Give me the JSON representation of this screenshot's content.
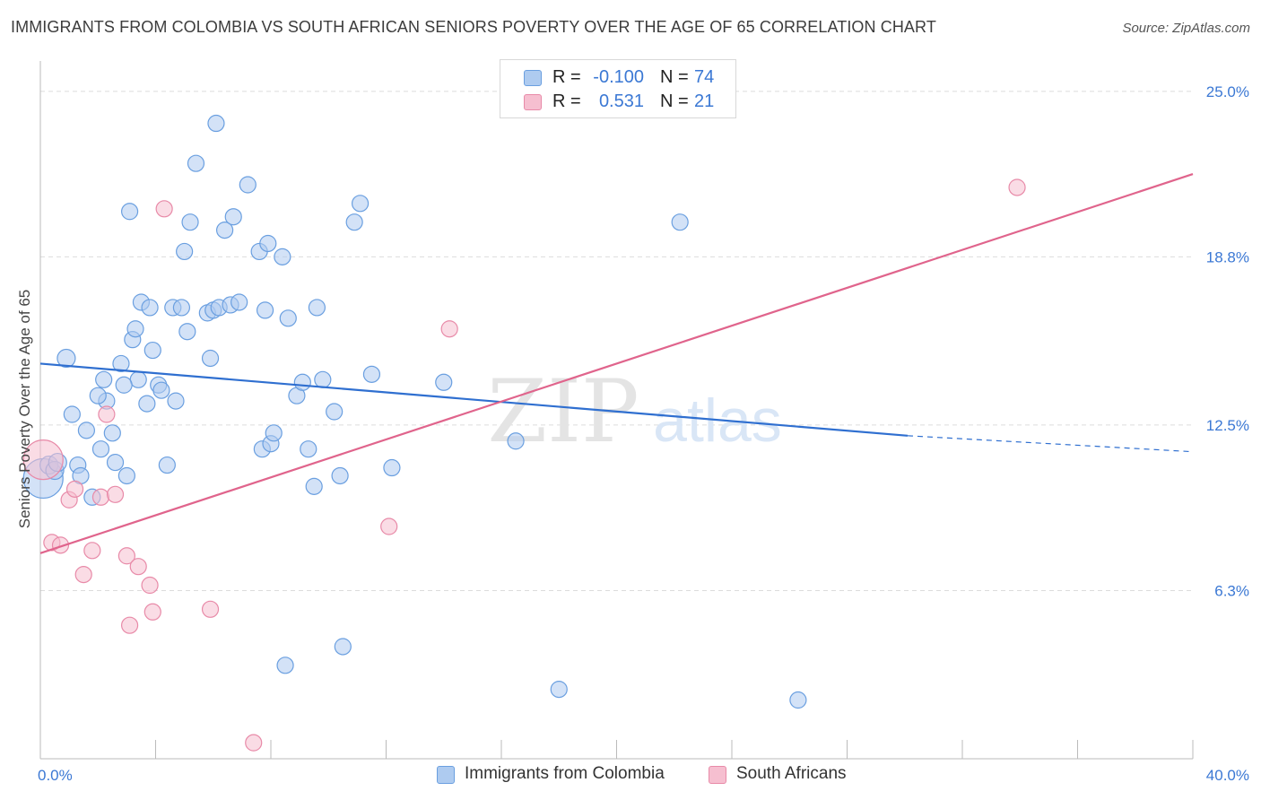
{
  "header": {
    "title": "IMMIGRANTS FROM COLOMBIA VS SOUTH AFRICAN SENIORS POVERTY OVER THE AGE OF 65 CORRELATION CHART",
    "source": "Source: ZipAtlas.com"
  },
  "legend": {
    "rows": [
      {
        "r_label": "R =",
        "r_value": "-0.100",
        "n_label": "N =",
        "n_value": "74"
      },
      {
        "r_label": "R =",
        "r_value": "0.531",
        "n_label": "N =",
        "n_value": "21"
      }
    ]
  },
  "watermark": {
    "zip": "ZIP",
    "atlas": "atlas"
  },
  "colors": {
    "blue_fill": "#aecbf0",
    "blue_stroke": "#6a9fe0",
    "blue_line": "#2f6fd0",
    "pink_fill": "#f6bfd0",
    "pink_stroke": "#e88aa8",
    "pink_line": "#e0648c",
    "tick_text": "#3b78d4"
  },
  "chart_data": {
    "type": "scatter",
    "title": "IMMIGRANTS FROM COLOMBIA VS SOUTH AFRICAN SENIORS POVERTY OVER THE AGE OF 65 CORRELATION CHART",
    "xlabel": "",
    "ylabel": "Seniors Poverty Over the Age of 65",
    "xlim": [
      0,
      40
    ],
    "ylim": [
      0,
      25.8
    ],
    "x_tick_labels": [
      "0.0%",
      "40.0%"
    ],
    "y_ticks": [
      6.3,
      12.5,
      18.8,
      25.0
    ],
    "y_tick_labels": [
      "6.3%",
      "12.5%",
      "18.8%",
      "25.0%"
    ],
    "grid": "horizontal dashed",
    "legend_position": "top-center",
    "series": [
      {
        "name": "Immigrants from Colombia",
        "color": "#6a9fe0",
        "trend": {
          "x": [
            0,
            30.1
          ],
          "y": [
            14.8,
            12.1
          ],
          "extended_to": [
            40,
            11.5
          ]
        },
        "points": [
          [
            0.1,
            10.5,
            22
          ],
          [
            0.3,
            11.0,
            10
          ],
          [
            0.5,
            10.8,
            10
          ],
          [
            0.6,
            11.1,
            10
          ],
          [
            0.9,
            15.0,
            10
          ],
          [
            1.1,
            12.9,
            9
          ],
          [
            1.3,
            11.0,
            9
          ],
          [
            1.4,
            10.6,
            9
          ],
          [
            1.6,
            12.3,
            9
          ],
          [
            1.8,
            9.8,
            9
          ],
          [
            2.1,
            11.6,
            9
          ],
          [
            2.2,
            14.2,
            9
          ],
          [
            2.3,
            13.4,
            9
          ],
          [
            2.5,
            12.2,
            9
          ],
          [
            2.6,
            11.1,
            9
          ],
          [
            2.8,
            14.8,
            9
          ],
          [
            3.0,
            10.6,
            9
          ],
          [
            3.2,
            15.7,
            9
          ],
          [
            3.3,
            16.1,
            9
          ],
          [
            3.5,
            17.1,
            9
          ],
          [
            3.7,
            13.3,
            9
          ],
          [
            3.8,
            16.9,
            9
          ],
          [
            3.9,
            15.3,
            9
          ],
          [
            4.1,
            14.0,
            9
          ],
          [
            4.2,
            13.8,
            9
          ],
          [
            4.4,
            11.0,
            9
          ],
          [
            4.6,
            16.9,
            9
          ],
          [
            4.7,
            13.4,
            9
          ],
          [
            4.9,
            16.9,
            9
          ],
          [
            5.1,
            16.0,
            9
          ],
          [
            3.1,
            20.5,
            9
          ],
          [
            5.2,
            20.1,
            9
          ],
          [
            5.4,
            22.3,
            9
          ],
          [
            5.0,
            19.0,
            9
          ],
          [
            5.8,
            16.7,
            9
          ],
          [
            5.9,
            15.0,
            9
          ],
          [
            6.0,
            16.8,
            9
          ],
          [
            6.2,
            16.9,
            9
          ],
          [
            6.4,
            19.8,
            9
          ],
          [
            6.6,
            17.0,
            9
          ],
          [
            6.7,
            20.3,
            9
          ],
          [
            6.9,
            17.1,
            9
          ],
          [
            6.1,
            23.8,
            9
          ],
          [
            7.2,
            21.5,
            9
          ],
          [
            7.6,
            19.0,
            9
          ],
          [
            7.7,
            11.6,
            9
          ],
          [
            7.8,
            16.8,
            9
          ],
          [
            7.9,
            19.3,
            9
          ],
          [
            8.0,
            11.8,
            9
          ],
          [
            8.1,
            12.2,
            9
          ],
          [
            8.4,
            18.8,
            9
          ],
          [
            8.6,
            16.5,
            9
          ],
          [
            8.9,
            13.6,
            9
          ],
          [
            9.1,
            14.1,
            9
          ],
          [
            9.3,
            11.6,
            9
          ],
          [
            9.5,
            10.2,
            9
          ],
          [
            9.6,
            16.9,
            9
          ],
          [
            9.8,
            14.2,
            9
          ],
          [
            10.2,
            13.0,
            9
          ],
          [
            10.4,
            10.6,
            9
          ],
          [
            10.9,
            20.1,
            9
          ],
          [
            11.1,
            20.8,
            9
          ],
          [
            11.5,
            14.4,
            9
          ],
          [
            12.2,
            10.9,
            9
          ],
          [
            14.0,
            14.1,
            9
          ],
          [
            16.5,
            11.9,
            9
          ],
          [
            22.2,
            20.1,
            9
          ],
          [
            8.5,
            3.5,
            9
          ],
          [
            10.5,
            4.2,
            9
          ],
          [
            18.0,
            2.6,
            9
          ],
          [
            26.3,
            2.2,
            9
          ],
          [
            3.4,
            14.2,
            9
          ],
          [
            2.9,
            14.0,
            9
          ],
          [
            2.0,
            13.6,
            9
          ]
        ]
      },
      {
        "name": "South Africans",
        "color": "#e88aa8",
        "trend": {
          "x": [
            0,
            40
          ],
          "y": [
            7.7,
            21.9
          ]
        },
        "points": [
          [
            0.1,
            11.2,
            22
          ],
          [
            0.4,
            8.1,
            9
          ],
          [
            0.7,
            8.0,
            9
          ],
          [
            1.0,
            9.7,
            9
          ],
          [
            1.2,
            10.1,
            9
          ],
          [
            1.5,
            6.9,
            9
          ],
          [
            1.8,
            7.8,
            9
          ],
          [
            2.1,
            9.8,
            9
          ],
          [
            2.3,
            12.9,
            9
          ],
          [
            2.6,
            9.9,
            9
          ],
          [
            3.0,
            7.6,
            9
          ],
          [
            3.1,
            5.0,
            9
          ],
          [
            3.4,
            7.2,
            9
          ],
          [
            3.8,
            6.5,
            9
          ],
          [
            3.9,
            5.5,
            9
          ],
          [
            4.3,
            20.6,
            9
          ],
          [
            5.9,
            5.6,
            9
          ],
          [
            7.4,
            0.6,
            9
          ],
          [
            12.1,
            8.7,
            9
          ],
          [
            14.2,
            16.1,
            9
          ],
          [
            33.9,
            21.4,
            9
          ]
        ]
      }
    ]
  },
  "bottom_legend": {
    "items": [
      {
        "label": "Immigrants from Colombia"
      },
      {
        "label": "South Africans"
      }
    ]
  }
}
